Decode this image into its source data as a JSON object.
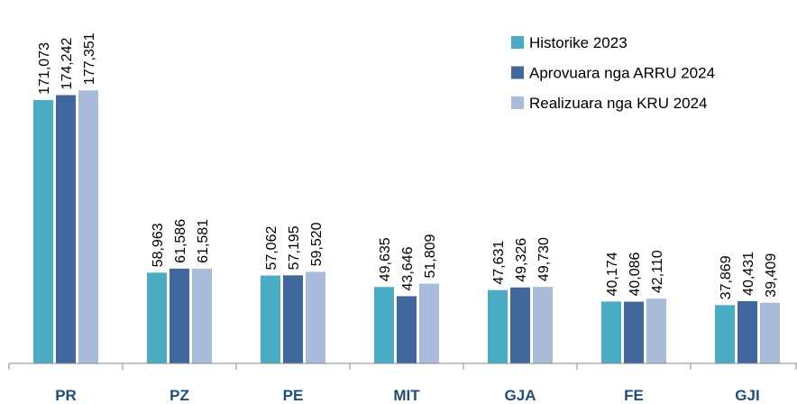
{
  "chart_data": {
    "type": "bar",
    "categories": [
      "PR",
      "PZ",
      "PE",
      "MIT",
      "GJA",
      "FE",
      "GJI"
    ],
    "series": [
      {
        "name": "Historike 2023",
        "color": "#4bacc6",
        "values": [
          171073,
          58963,
          57062,
          49635,
          47631,
          40174,
          37869
        ],
        "value_labels": [
          "171,073",
          "58,963",
          "57,062",
          "49,635",
          "47,631",
          "40,174",
          "37,869"
        ]
      },
      {
        "name": "Aprovuara nga ARRU 2024",
        "color": "#41689c",
        "values": [
          174242,
          61586,
          57195,
          43646,
          49326,
          40086,
          40431
        ],
        "value_labels": [
          "174,242",
          "61,586",
          "57,195",
          "43,646",
          "49,326",
          "40,086",
          "40,431"
        ]
      },
      {
        "name": "Realizuara nga KRU 2024",
        "color": "#a9bcdc",
        "values": [
          177351,
          61581,
          59520,
          51809,
          49730,
          42110,
          39409
        ],
        "value_labels": [
          "177,351",
          "61,581",
          "59,520",
          "51,809",
          "49,730",
          "42,110",
          "39,409"
        ]
      }
    ],
    "ylim": [
      0,
      236000
    ],
    "legend": "top-right"
  }
}
